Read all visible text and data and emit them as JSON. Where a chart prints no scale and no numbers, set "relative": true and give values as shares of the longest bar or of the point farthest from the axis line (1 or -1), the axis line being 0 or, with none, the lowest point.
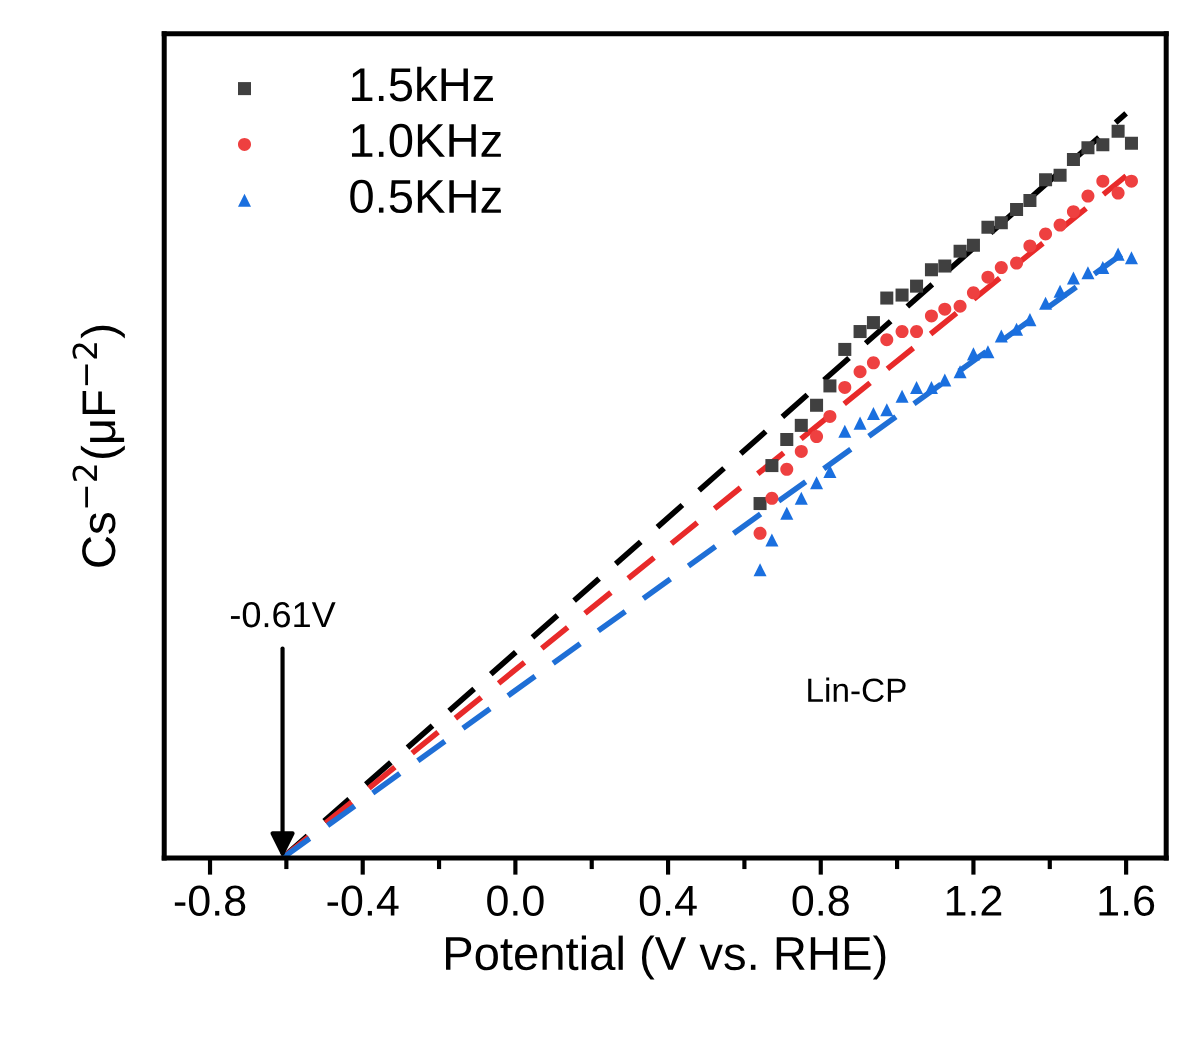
{
  "chart_data": {
    "type": "scatter",
    "relative": true,
    "xlabel": "Potential (V vs. RHE)",
    "ylabel": "Cs$^{−2}$(μF$^{−2}$)",
    "xlim": [
      -0.92,
      1.705
    ],
    "xticks": [
      -0.8,
      {
        "value": -0.6,
        "label": null
      },
      -0.4,
      {
        "value": -0.2,
        "label": null
      },
      {
        "value": 0.0,
        "label": "0.0"
      },
      {
        "value": 0.2,
        "label": null
      },
      0.4,
      {
        "value": 0.6,
        "label": null
      },
      0.8,
      {
        "value": 1.0,
        "label": null
      },
      1.2,
      {
        "value": 1.4,
        "label": null
      },
      1.6
    ],
    "legend": "top left",
    "grid": false,
    "annotations": [
      {
        "text": "-0.61V",
        "x": -0.61,
        "y": 0
      },
      "Lin-CP"
    ],
    "series": [
      {
        "name": "1.5kHz",
        "color": "#404040",
        "marker": "square",
        "x": [
          0.641,
          0.672,
          0.711,
          0.749,
          0.789,
          0.824,
          0.863,
          0.903,
          0.938,
          0.973,
          1.013,
          1.051,
          1.09,
          1.125,
          1.165,
          1.2,
          1.238,
          1.273,
          1.313,
          1.348,
          1.389,
          1.427,
          1.462,
          1.5,
          1.539,
          1.579,
          1.614
        ],
        "values": [
          0.476,
          0.527,
          0.562,
          0.581,
          0.608,
          0.634,
          0.683,
          0.707,
          0.719,
          0.752,
          0.756,
          0.768,
          0.79,
          0.795,
          0.815,
          0.823,
          0.847,
          0.853,
          0.871,
          0.883,
          0.911,
          0.917,
          0.938,
          0.954,
          0.958,
          0.976,
          0.96
        ]
      },
      {
        "name": "1.0KHz",
        "color": "#ee4040",
        "marker": "circle",
        "x": [
          0.641,
          0.672,
          0.711,
          0.749,
          0.789,
          0.824,
          0.863,
          0.903,
          0.938,
          0.973,
          1.013,
          1.051,
          1.09,
          1.125,
          1.165,
          1.2,
          1.238,
          1.273,
          1.313,
          1.348,
          1.389,
          1.427,
          1.462,
          1.5,
          1.539,
          1.579,
          1.614
        ],
        "values": [
          0.436,
          0.483,
          0.522,
          0.546,
          0.566,
          0.593,
          0.632,
          0.653,
          0.665,
          0.696,
          0.707,
          0.707,
          0.728,
          0.737,
          0.741,
          0.759,
          0.78,
          0.793,
          0.799,
          0.822,
          0.838,
          0.85,
          0.868,
          0.889,
          0.909,
          0.893,
          0.909
        ]
      },
      {
        "name": "0.5KHz",
        "color": "#1a6fdf",
        "marker": "triangle",
        "x": [
          0.641,
          0.672,
          0.711,
          0.749,
          0.789,
          0.824,
          0.863,
          0.903,
          0.938,
          0.973,
          1.013,
          1.051,
          1.09,
          1.125,
          1.165,
          1.2,
          1.238,
          1.273,
          1.313,
          1.348,
          1.389,
          1.427,
          1.462,
          1.5,
          1.539,
          1.579,
          1.614
        ],
        "values": [
          0.387,
          0.427,
          0.463,
          0.483,
          0.504,
          0.519,
          0.573,
          0.584,
          0.597,
          0.602,
          0.62,
          0.632,
          0.632,
          0.642,
          0.653,
          0.677,
          0.68,
          0.701,
          0.71,
          0.723,
          0.745,
          0.761,
          0.779,
          0.786,
          0.793,
          0.811,
          0.806
        ]
      },
      {
        "type": "line",
        "color": "#000000",
        "line_style": "dashed",
        "x": [
          -0.61,
          1.6
        ],
        "values": [
          0,
          1.0
        ]
      },
      {
        "type": "line",
        "color": "#e82a2a",
        "line_style": "dashed",
        "x": [
          -0.61,
          1.6
        ],
        "values": [
          0,
          0.916
        ]
      },
      {
        "type": "line",
        "color": "#1f6fd6",
        "line_style": "dashed",
        "x": [
          -0.61,
          1.6
        ],
        "values": [
          0,
          0.815
        ]
      }
    ]
  }
}
